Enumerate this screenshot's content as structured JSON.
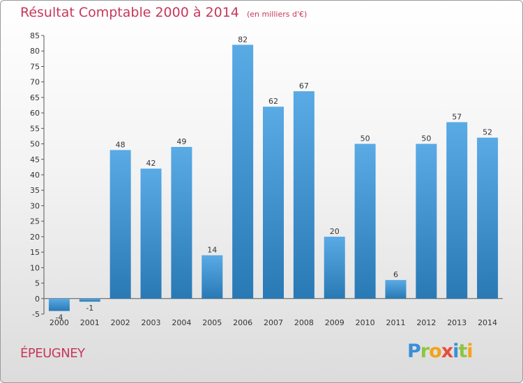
{
  "title": "Résultat Comptable 2000 à 2014",
  "subtitle": "(en milliers d'€)",
  "commune": "ÉPEUGNEY",
  "logo": [
    "P",
    "r",
    "o",
    "x",
    "i",
    "t",
    "i"
  ],
  "colors": {
    "title": "#c8375a",
    "bar_light": "#5aaae5",
    "bar_dark": "#2979b5",
    "logo": [
      "#3a8fd6",
      "#8cc63f",
      "#f2a31b",
      "#e84c3d",
      "#3a8fd6",
      "#8cc63f",
      "#f2a31b"
    ]
  },
  "chart_data": {
    "type": "bar",
    "categories": [
      "2000",
      "2001",
      "2002",
      "2003",
      "2004",
      "2005",
      "2006",
      "2007",
      "2008",
      "2009",
      "2010",
      "2011",
      "2012",
      "2013",
      "2014"
    ],
    "values": [
      -4,
      -1,
      48,
      42,
      49,
      14,
      82,
      62,
      67,
      20,
      50,
      6,
      50,
      57,
      52
    ],
    "labels": [
      "-4",
      "-1",
      "48",
      "42",
      "49",
      "14",
      "82",
      "62",
      "67",
      "20",
      "50",
      "6",
      "50",
      "57",
      "52"
    ],
    "ylim": [
      -5,
      85
    ],
    "yticks": [
      -5,
      0,
      5,
      10,
      15,
      20,
      25,
      30,
      35,
      40,
      45,
      50,
      55,
      60,
      65,
      70,
      75,
      80,
      85
    ],
    "grid": false
  }
}
